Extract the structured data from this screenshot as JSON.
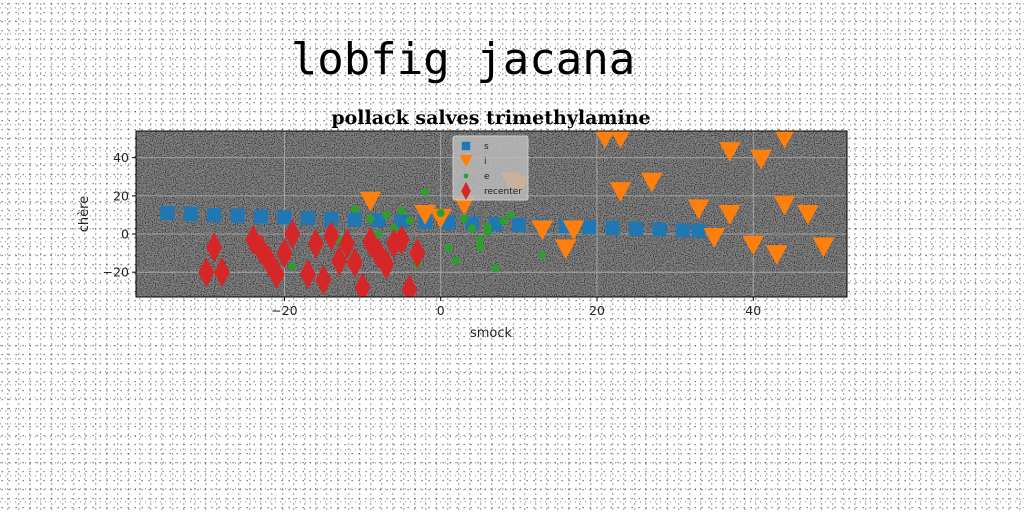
{
  "suptitle": "lobfig jacana",
  "chart_data": {
    "type": "scatter",
    "title": "pollack salves trimethylamine",
    "xlabel": "smock",
    "ylabel": "chère",
    "xlim": [
      -39,
      52
    ],
    "ylim": [
      -33,
      54
    ],
    "xticks": [
      -20,
      0,
      20,
      40
    ],
    "yticks": [
      -20,
      0,
      20,
      40
    ],
    "grid": true,
    "legend_position": "top-center",
    "background": "#808080",
    "series": [
      {
        "name": "s",
        "marker": "square",
        "color": "#1f77b4",
        "x": [
          -35,
          -32,
          -29,
          -26,
          -23,
          -20,
          -17,
          -14,
          -11,
          -8,
          -5,
          -2,
          1,
          4,
          7,
          10,
          13,
          16,
          19,
          22,
          25,
          28,
          31,
          33
        ],
        "y": [
          11,
          10.5,
          10,
          9.6,
          9.2,
          8.8,
          8.4,
          8,
          7.6,
          7.2,
          6.8,
          6.4,
          6,
          5.6,
          5.2,
          4.8,
          4.4,
          4,
          3.6,
          3.2,
          2.8,
          2.4,
          2,
          1.8
        ]
      },
      {
        "name": "i",
        "marker": "triangle-down",
        "color": "#ff7f0e",
        "x": [
          -9,
          -2,
          0,
          3,
          9,
          10,
          13,
          16,
          17,
          21,
          23,
          23,
          27,
          33,
          35,
          37,
          37,
          40,
          41,
          43,
          44,
          44,
          47,
          49
        ],
        "y": [
          17,
          10,
          8,
          15,
          27,
          25,
          2,
          -8,
          2,
          50,
          22,
          50,
          27,
          13,
          -2,
          43,
          10,
          -6,
          39,
          -11,
          15,
          50,
          10,
          -7
        ]
      },
      {
        "name": "e",
        "marker": "circle",
        "color": "#2ca02c",
        "x": [
          -19,
          -13,
          -11,
          -9,
          -8,
          -7,
          -6,
          -5,
          -4,
          -3,
          -2,
          0,
          1,
          2,
          3,
          4,
          5,
          5,
          6,
          6,
          7,
          8,
          9,
          13
        ],
        "y": [
          -17,
          -3,
          13,
          8,
          0,
          10,
          3,
          12,
          7,
          -16,
          22,
          11,
          -7,
          -14,
          8,
          3,
          -3,
          -7,
          1,
          4,
          -18,
          7,
          10,
          -11
        ]
      },
      {
        "name": "recenter",
        "marker": "diamond",
        "color": "#d62728",
        "x": [
          -30,
          -29,
          -28,
          -24,
          -23,
          -22,
          -21,
          -20,
          -19,
          -17,
          -16,
          -15,
          -14,
          -13,
          -12,
          -11,
          -10,
          -9,
          -8,
          -7,
          -6,
          -5,
          -4,
          -3
        ],
        "y": [
          -20,
          -7,
          -20,
          -3,
          -8,
          -14,
          -21,
          -10,
          0,
          -21,
          -5,
          -24,
          -1,
          -14,
          -5,
          -15,
          -28,
          -4,
          -10,
          -16,
          -5,
          -3,
          -29,
          -10
        ]
      }
    ]
  }
}
